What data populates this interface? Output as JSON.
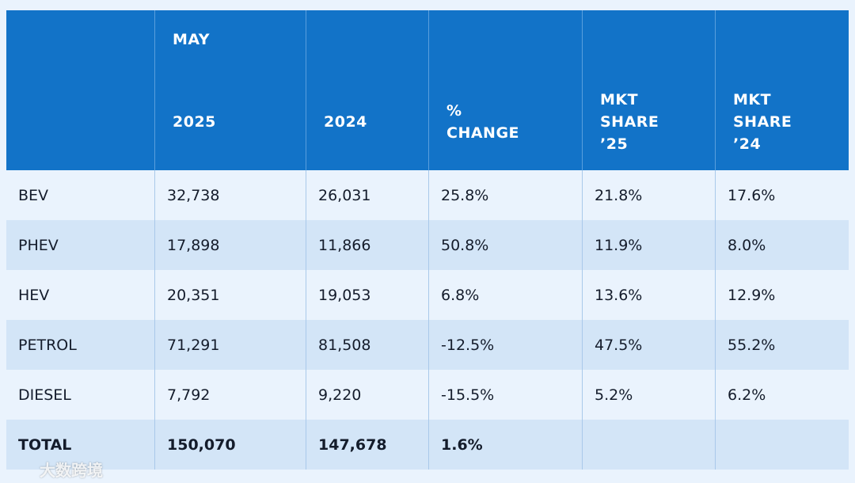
{
  "header": {
    "month": "MAY",
    "columns": [
      "2025",
      "2024",
      "% CHANGE",
      "MKT SHARE ’25",
      "MKT SHARE ’24"
    ]
  },
  "table": {
    "rows": [
      [
        "BEV",
        "32,738",
        "26,031",
        "25.8%",
        "21.8%",
        "17.6%"
      ],
      [
        "PHEV",
        "17,898",
        "11,866",
        "50.8%",
        "11.9%",
        "8.0%"
      ],
      [
        "HEV",
        "20,351",
        "19,053",
        "6.8%",
        "13.6%",
        "12.9%"
      ],
      [
        "PETROL",
        "71,291",
        "81,508",
        "-12.5%",
        "47.5%",
        "55.2%"
      ],
      [
        "DIESEL",
        "7,792",
        "9,220",
        "-15.5%",
        "5.2%",
        "6.2%"
      ],
      [
        "TOTAL",
        "150,070",
        "147,678",
        "1.6%"
      ]
    ]
  },
  "watermark": "大数跨境"
}
